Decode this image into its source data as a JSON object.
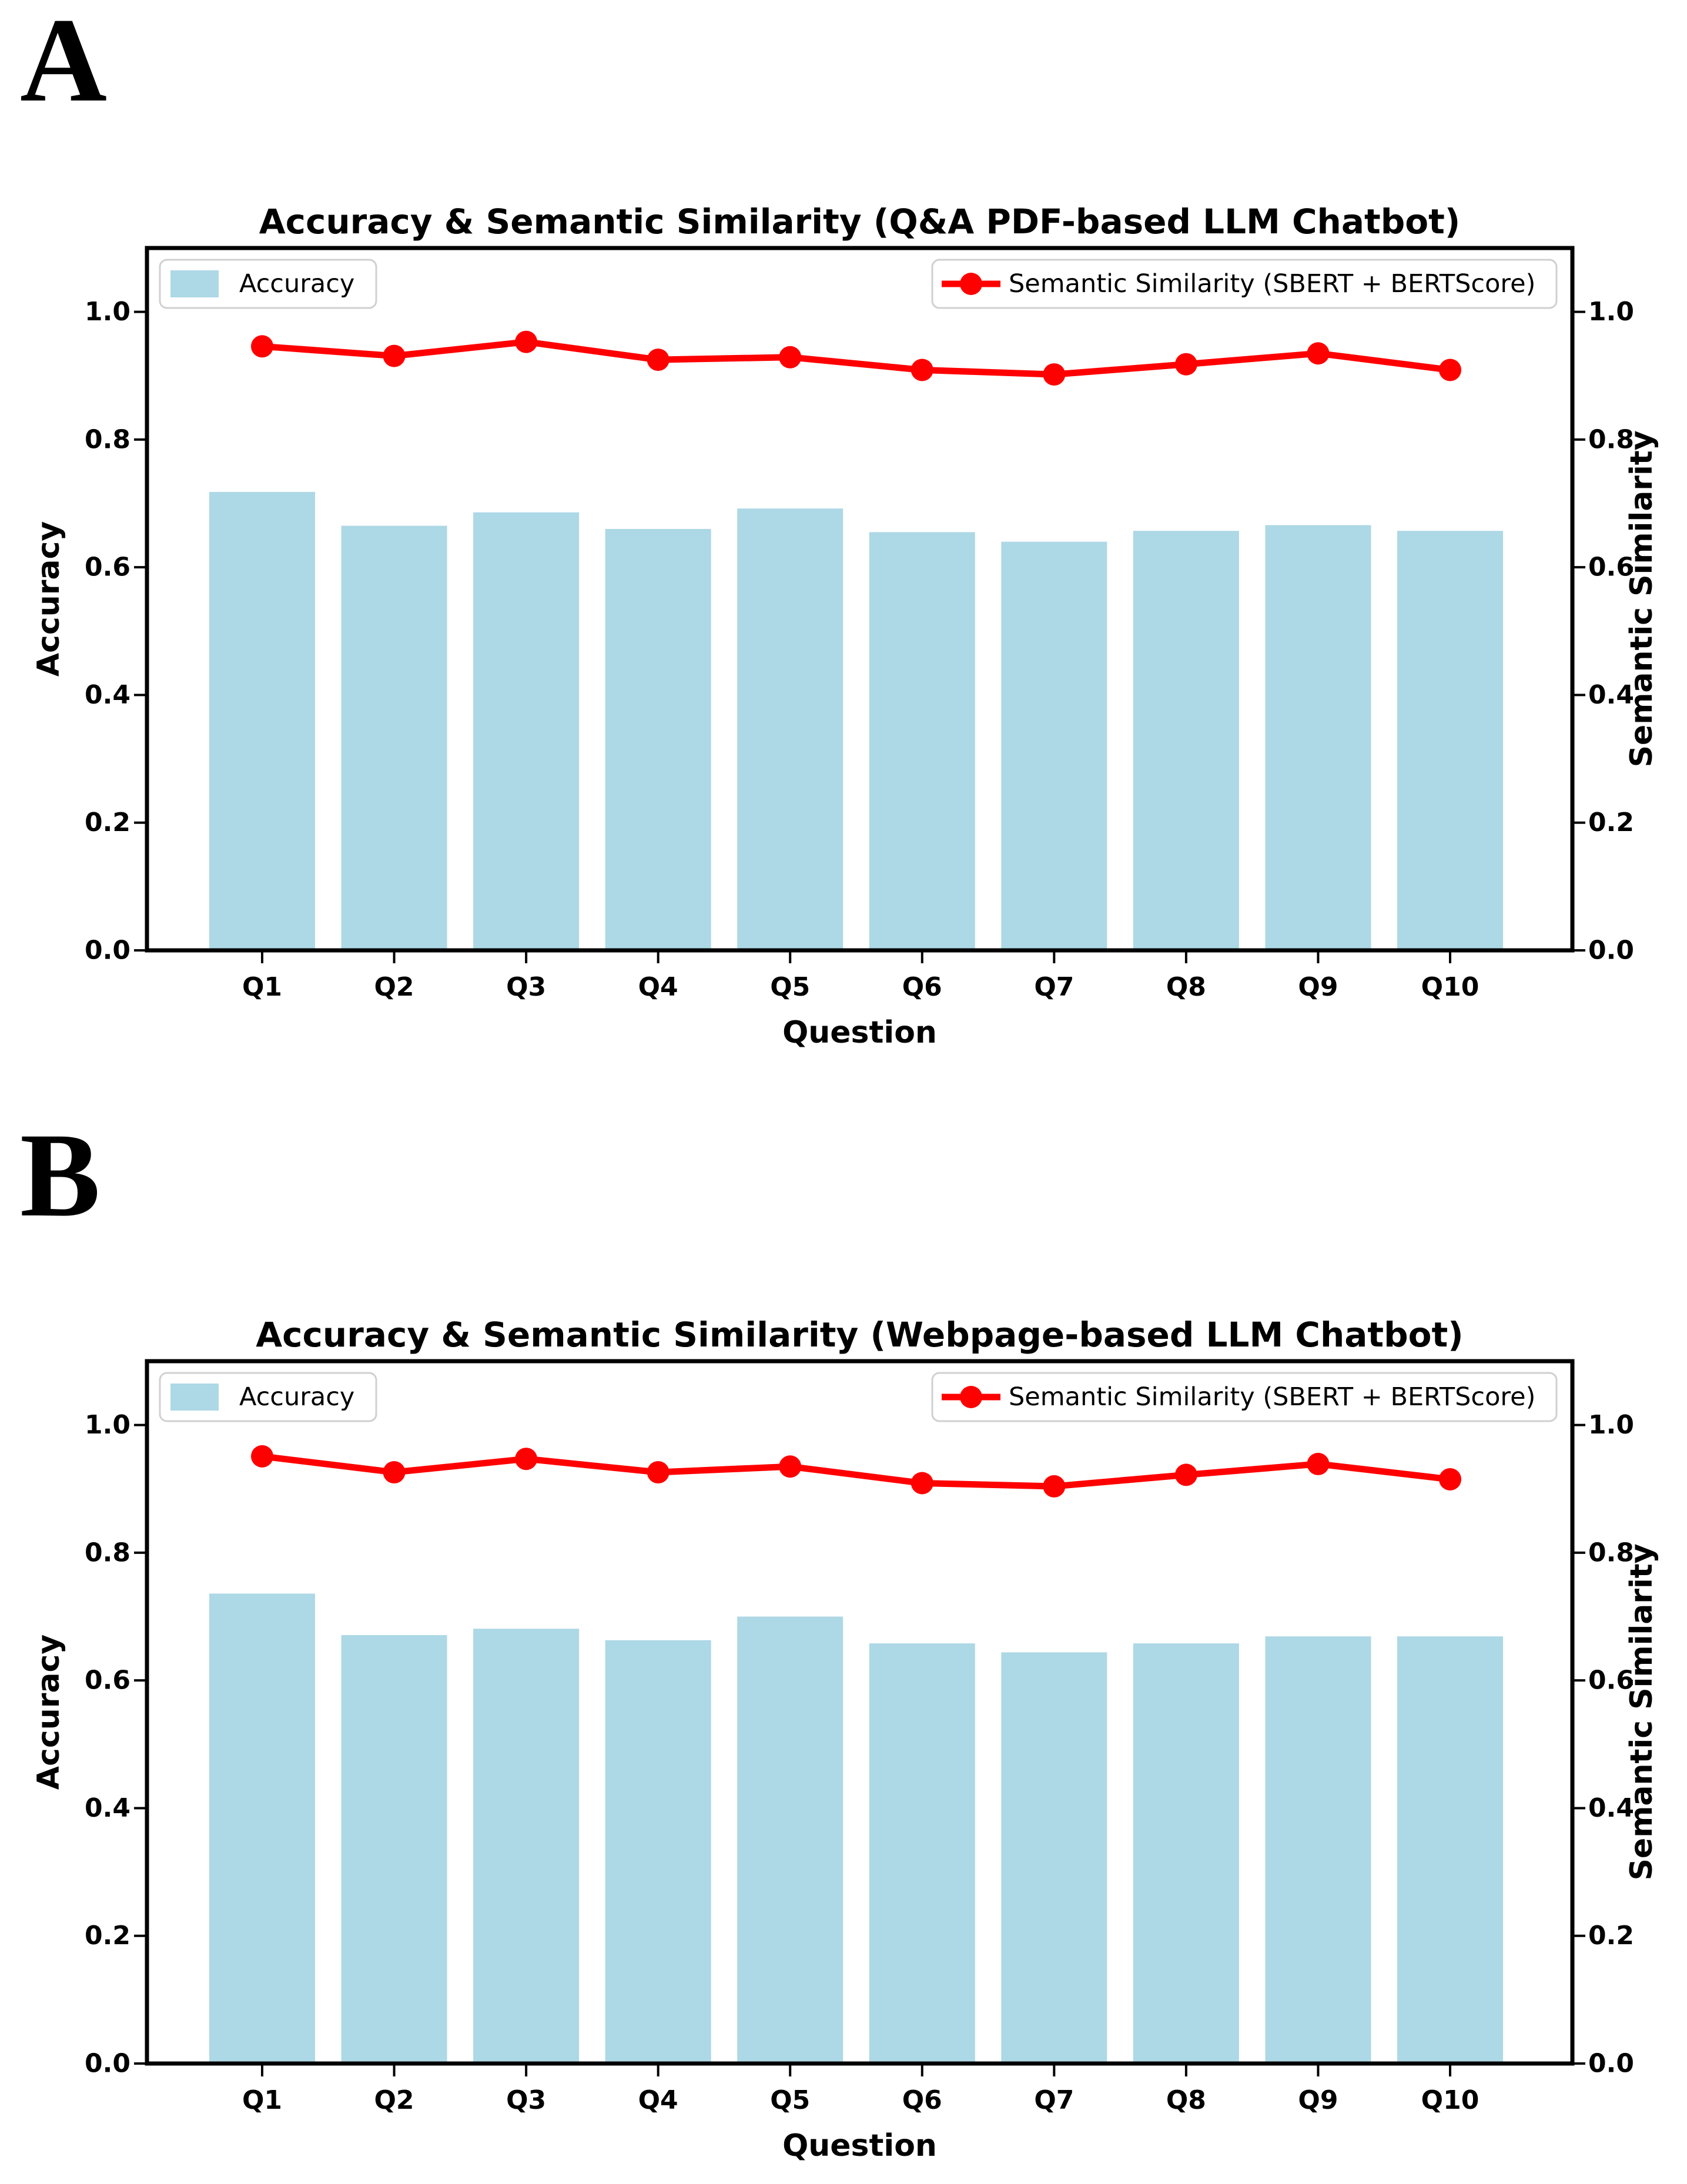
{
  "page": {
    "background": "#ffffff",
    "text_color": "#000000"
  },
  "panels": [
    {
      "label": "A"
    },
    {
      "label": "B"
    }
  ],
  "chart_data": [
    {
      "panel": "A",
      "type": "bar+line",
      "title": "Accuracy & Semantic Similarity (Q&A PDF-based LLM Chatbot)",
      "categories": [
        "Q1",
        "Q2",
        "Q3",
        "Q4",
        "Q5",
        "Q6",
        "Q7",
        "Q8",
        "Q9",
        "Q10"
      ],
      "series": [
        {
          "name": "Accuracy",
          "type": "bar",
          "axis": "left",
          "color": "#ADD8E6",
          "values": [
            0.718,
            0.665,
            0.686,
            0.66,
            0.692,
            0.655,
            0.64,
            0.657,
            0.666,
            0.657
          ]
        },
        {
          "name": "Semantic Similarity (SBERT + BERTScore)",
          "type": "line",
          "axis": "right",
          "color": "#FF0000",
          "values": [
            0.946,
            0.931,
            0.953,
            0.925,
            0.929,
            0.909,
            0.902,
            0.918,
            0.935,
            0.909
          ]
        }
      ],
      "xlabel": "Question",
      "ylabel_left": "Accuracy",
      "ylabel_right": "Semantic Similarity",
      "ylim": [
        0,
        1.1
      ],
      "yticks": [
        "0.0",
        "0.2",
        "0.4",
        "0.6",
        "0.8",
        "1.0"
      ],
      "grid": false,
      "legend": [
        {
          "label": "Accuracy",
          "swatch": "bar",
          "position": "top-left"
        },
        {
          "label": "Semantic Similarity (SBERT + BERTScore)",
          "swatch": "line-marker",
          "position": "top-right"
        }
      ]
    },
    {
      "panel": "B",
      "type": "bar+line",
      "title": "Accuracy & Semantic Similarity (Webpage-based LLM Chatbot)",
      "categories": [
        "Q1",
        "Q2",
        "Q3",
        "Q4",
        "Q5",
        "Q6",
        "Q7",
        "Q8",
        "Q9",
        "Q10"
      ],
      "series": [
        {
          "name": "Accuracy",
          "type": "bar",
          "axis": "left",
          "color": "#ADD8E6",
          "values": [
            0.736,
            0.671,
            0.681,
            0.663,
            0.7,
            0.658,
            0.644,
            0.658,
            0.669,
            0.669
          ]
        },
        {
          "name": "Semantic Similarity (SBERT + BERTScore)",
          "type": "line",
          "axis": "right",
          "color": "#FF0000",
          "values": [
            0.951,
            0.926,
            0.947,
            0.926,
            0.935,
            0.909,
            0.904,
            0.922,
            0.939,
            0.915
          ]
        }
      ],
      "xlabel": "Question",
      "ylabel_left": "Accuracy",
      "ylabel_right": "Semantic Similarity",
      "ylim": [
        0,
        1.1
      ],
      "yticks": [
        "0.0",
        "0.2",
        "0.4",
        "0.6",
        "0.8",
        "1.0"
      ],
      "grid": false,
      "legend": [
        {
          "label": "Accuracy",
          "swatch": "bar",
          "position": "top-left"
        },
        {
          "label": "Semantic Similarity (SBERT + BERTScore)",
          "swatch": "line-marker",
          "position": "top-right"
        }
      ]
    }
  ]
}
